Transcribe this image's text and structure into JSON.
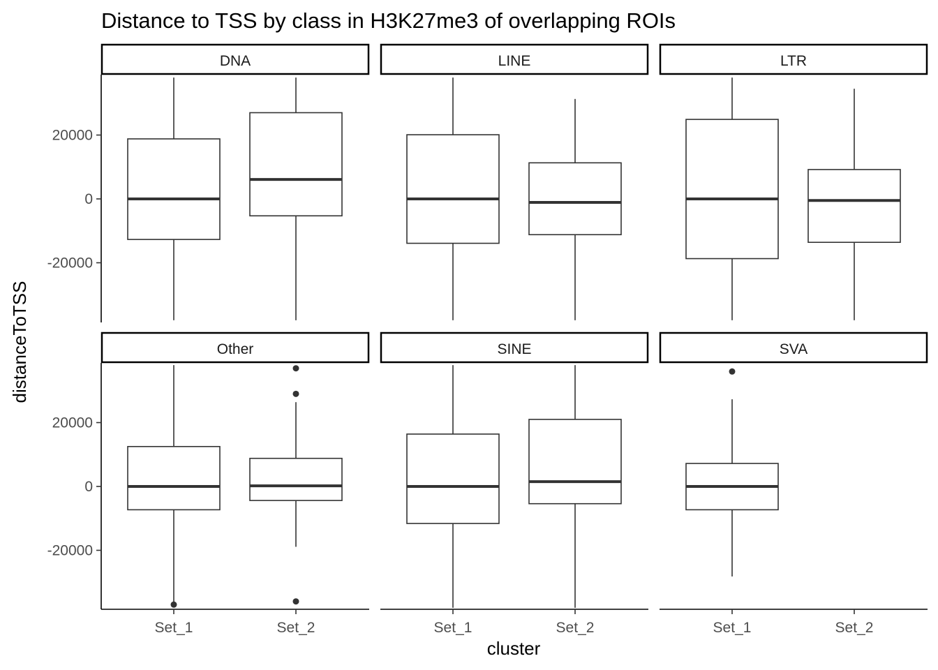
{
  "chart_data": {
    "type": "boxplot",
    "title": "Distance to TSS by class in H3K27me3 of overlapping ROIs",
    "xlabel": "cluster",
    "ylabel": "distanceToTSS",
    "categories": [
      "Set_1",
      "Set_2"
    ],
    "y_ticks": [
      -20000,
      0,
      20000
    ],
    "y_tick_labels": [
      "-20000",
      "0",
      "20000"
    ],
    "ylim": [
      -38000,
      38000
    ],
    "grid": false,
    "legend": "none",
    "layout": "facet 3 columns x 2 rows",
    "panels": [
      {
        "name": "DNA",
        "boxes": [
          {
            "category": "Set_1",
            "whisker_low": -38000,
            "q1": -12700,
            "median": 0,
            "q3": 18800,
            "whisker_high": 38000,
            "outliers": []
          },
          {
            "category": "Set_2",
            "whisker_low": -38000,
            "q1": -5300,
            "median": 6100,
            "q3": 27000,
            "whisker_high": 38000,
            "outliers": []
          }
        ]
      },
      {
        "name": "LINE",
        "boxes": [
          {
            "category": "Set_1",
            "whisker_low": -38000,
            "q1": -13900,
            "median": 0,
            "q3": 20100,
            "whisker_high": 38000,
            "outliers": []
          },
          {
            "category": "Set_2",
            "whisker_low": -38000,
            "q1": -11200,
            "median": -1100,
            "q3": 11300,
            "whisker_high": 31300,
            "outliers": []
          }
        ]
      },
      {
        "name": "LTR",
        "boxes": [
          {
            "category": "Set_1",
            "whisker_low": -38000,
            "q1": -18700,
            "median": 0,
            "q3": 24900,
            "whisker_high": 38000,
            "outliers": []
          },
          {
            "category": "Set_2",
            "whisker_low": -38000,
            "q1": -13600,
            "median": -500,
            "q3": 9200,
            "whisker_high": 34500,
            "outliers": []
          }
        ]
      },
      {
        "name": "Other",
        "boxes": [
          {
            "category": "Set_1",
            "whisker_low": -37000,
            "q1": -7300,
            "median": 0,
            "q3": 12500,
            "whisker_high": 38000,
            "outliers": [
              -37000
            ]
          },
          {
            "category": "Set_2",
            "whisker_low": -18900,
            "q1": -4400,
            "median": 200,
            "q3": 8800,
            "whisker_high": 26400,
            "outliers": [
              -36000,
              29000,
              37000
            ]
          }
        ]
      },
      {
        "name": "SINE",
        "boxes": [
          {
            "category": "Set_1",
            "whisker_low": -38000,
            "q1": -11600,
            "median": 0,
            "q3": 16400,
            "whisker_high": 38000,
            "outliers": []
          },
          {
            "category": "Set_2",
            "whisker_low": -38000,
            "q1": -5400,
            "median": 1500,
            "q3": 21000,
            "whisker_high": 38000,
            "outliers": []
          }
        ]
      },
      {
        "name": "SVA",
        "boxes": [
          {
            "category": "Set_1",
            "whisker_low": -28200,
            "q1": -7300,
            "median": 0,
            "q3": 7200,
            "whisker_high": 27300,
            "outliers": [
              36000
            ]
          }
        ]
      }
    ]
  }
}
